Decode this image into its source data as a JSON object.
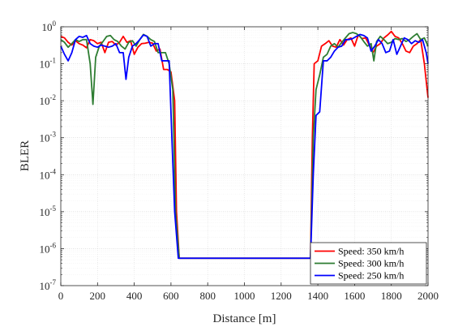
{
  "chart_data": {
    "type": "line",
    "xlabel": "Distance [m]",
    "ylabel": "BLER",
    "xlim": [
      0,
      2000
    ],
    "ylim_exp": [
      -7,
      0
    ],
    "yscale": "log",
    "grid": true,
    "legend_position": "bottom-right",
    "x_ticks": [
      "0",
      "200",
      "400",
      "600",
      "800",
      "1000",
      "1200",
      "1400",
      "1600",
      "1800",
      "2000"
    ],
    "y_tick_base": "10",
    "y_tick_exponents": [
      "-7",
      "-6",
      "-5",
      "-4",
      "-3",
      "-2",
      "-1",
      "0"
    ],
    "series": [
      {
        "name": "Speed: 350 km/h",
        "color": "#ff0000",
        "points": [
          [
            0,
            0.55
          ],
          [
            20,
            0.5
          ],
          [
            40,
            0.38
          ],
          [
            60,
            0.32
          ],
          [
            80,
            0.42
          ],
          [
            100,
            0.35
          ],
          [
            120,
            0.32
          ],
          [
            140,
            0.27
          ],
          [
            160,
            0.45
          ],
          [
            180,
            0.42
          ],
          [
            200,
            0.35
          ],
          [
            220,
            0.38
          ],
          [
            240,
            0.2
          ],
          [
            260,
            0.38
          ],
          [
            280,
            0.4
          ],
          [
            300,
            0.32
          ],
          [
            320,
            0.38
          ],
          [
            340,
            0.55
          ],
          [
            360,
            0.38
          ],
          [
            380,
            0.42
          ],
          [
            400,
            0.18
          ],
          [
            420,
            0.28
          ],
          [
            440,
            0.35
          ],
          [
            460,
            0.36
          ],
          [
            480,
            0.38
          ],
          [
            500,
            0.36
          ],
          [
            520,
            0.22
          ],
          [
            540,
            0.25
          ],
          [
            560,
            0.07
          ],
          [
            580,
            0.07
          ],
          [
            600,
            0.06
          ],
          [
            620,
            0.01
          ],
          [
            630,
            1e-05
          ],
          [
            645,
            5.5e-07
          ],
          [
            1360,
            5.5e-07
          ],
          [
            1370,
            0.001
          ],
          [
            1380,
            0.1
          ],
          [
            1400,
            0.12
          ],
          [
            1420,
            0.3
          ],
          [
            1440,
            0.35
          ],
          [
            1460,
            0.42
          ],
          [
            1480,
            0.3
          ],
          [
            1500,
            0.28
          ],
          [
            1520,
            0.45
          ],
          [
            1540,
            0.32
          ],
          [
            1560,
            0.45
          ],
          [
            1580,
            0.5
          ],
          [
            1600,
            0.3
          ],
          [
            1620,
            0.6
          ],
          [
            1640,
            0.48
          ],
          [
            1660,
            0.5
          ],
          [
            1680,
            0.32
          ],
          [
            1700,
            0.2
          ],
          [
            1720,
            0.3
          ],
          [
            1740,
            0.35
          ],
          [
            1760,
            0.5
          ],
          [
            1780,
            0.6
          ],
          [
            1800,
            0.75
          ],
          [
            1820,
            0.55
          ],
          [
            1840,
            0.5
          ],
          [
            1860,
            0.35
          ],
          [
            1880,
            0.22
          ],
          [
            1900,
            0.2
          ],
          [
            1920,
            0.3
          ],
          [
            1940,
            0.35
          ],
          [
            1960,
            0.45
          ],
          [
            1980,
            0.1
          ],
          [
            2000,
            0.012
          ]
        ]
      },
      {
        "name": "Speed: 300 km/h",
        "color": "#2e7d32",
        "points": [
          [
            0,
            0.45
          ],
          [
            20,
            0.38
          ],
          [
            40,
            0.28
          ],
          [
            60,
            0.35
          ],
          [
            80,
            0.45
          ],
          [
            100,
            0.4
          ],
          [
            120,
            0.45
          ],
          [
            140,
            0.45
          ],
          [
            160,
            0.1
          ],
          [
            175,
            0.008
          ],
          [
            190,
            0.15
          ],
          [
            210,
            0.3
          ],
          [
            230,
            0.4
          ],
          [
            250,
            0.55
          ],
          [
            270,
            0.58
          ],
          [
            290,
            0.45
          ],
          [
            310,
            0.4
          ],
          [
            330,
            0.3
          ],
          [
            350,
            0.25
          ],
          [
            370,
            0.38
          ],
          [
            390,
            0.42
          ],
          [
            410,
            0.3
          ],
          [
            430,
            0.45
          ],
          [
            450,
            0.62
          ],
          [
            470,
            0.55
          ],
          [
            490,
            0.45
          ],
          [
            510,
            0.4
          ],
          [
            530,
            0.2
          ],
          [
            550,
            0.2
          ],
          [
            570,
            0.2
          ],
          [
            590,
            0.1
          ],
          [
            610,
            0.02
          ],
          [
            625,
            1e-05
          ],
          [
            645,
            5.5e-07
          ],
          [
            1360,
            5.5e-07
          ],
          [
            1375,
            0.001
          ],
          [
            1390,
            0.02
          ],
          [
            1410,
            0.05
          ],
          [
            1430,
            0.15
          ],
          [
            1450,
            0.18
          ],
          [
            1470,
            0.3
          ],
          [
            1490,
            0.35
          ],
          [
            1510,
            0.28
          ],
          [
            1530,
            0.38
          ],
          [
            1550,
            0.5
          ],
          [
            1570,
            0.65
          ],
          [
            1590,
            0.7
          ],
          [
            1610,
            0.65
          ],
          [
            1630,
            0.55
          ],
          [
            1650,
            0.4
          ],
          [
            1670,
            0.3
          ],
          [
            1690,
            0.35
          ],
          [
            1705,
            0.12
          ],
          [
            1720,
            0.4
          ],
          [
            1740,
            0.55
          ],
          [
            1760,
            0.45
          ],
          [
            1780,
            0.35
          ],
          [
            1800,
            0.38
          ],
          [
            1820,
            0.48
          ],
          [
            1840,
            0.45
          ],
          [
            1860,
            0.48
          ],
          [
            1880,
            0.4
          ],
          [
            1900,
            0.45
          ],
          [
            1920,
            0.55
          ],
          [
            1940,
            0.65
          ],
          [
            1960,
            0.45
          ],
          [
            1980,
            0.5
          ],
          [
            2000,
            0.3
          ]
        ]
      },
      {
        "name": "Speed: 250 km/h",
        "color": "#0000ff",
        "points": [
          [
            0,
            0.3
          ],
          [
            20,
            0.18
          ],
          [
            40,
            0.12
          ],
          [
            60,
            0.2
          ],
          [
            80,
            0.45
          ],
          [
            100,
            0.55
          ],
          [
            120,
            0.52
          ],
          [
            140,
            0.58
          ],
          [
            160,
            0.35
          ],
          [
            180,
            0.3
          ],
          [
            200,
            0.28
          ],
          [
            220,
            0.32
          ],
          [
            240,
            0.3
          ],
          [
            260,
            0.28
          ],
          [
            280,
            0.3
          ],
          [
            300,
            0.35
          ],
          [
            320,
            0.2
          ],
          [
            340,
            0.2
          ],
          [
            355,
            0.038
          ],
          [
            370,
            0.15
          ],
          [
            390,
            0.3
          ],
          [
            410,
            0.35
          ],
          [
            430,
            0.45
          ],
          [
            450,
            0.6
          ],
          [
            470,
            0.55
          ],
          [
            490,
            0.3
          ],
          [
            510,
            0.35
          ],
          [
            530,
            0.35
          ],
          [
            550,
            0.12
          ],
          [
            570,
            0.12
          ],
          [
            590,
            0.12
          ],
          [
            605,
            0.001
          ],
          [
            620,
            1e-05
          ],
          [
            640,
            5.5e-07
          ],
          [
            1360,
            5.5e-07
          ],
          [
            1375,
            0.0001
          ],
          [
            1390,
            0.004
          ],
          [
            1410,
            0.005
          ],
          [
            1430,
            0.12
          ],
          [
            1450,
            0.12
          ],
          [
            1470,
            0.15
          ],
          [
            1490,
            0.22
          ],
          [
            1510,
            0.28
          ],
          [
            1530,
            0.3
          ],
          [
            1550,
            0.45
          ],
          [
            1570,
            0.45
          ],
          [
            1590,
            0.48
          ],
          [
            1610,
            0.55
          ],
          [
            1630,
            0.62
          ],
          [
            1650,
            0.58
          ],
          [
            1670,
            0.5
          ],
          [
            1690,
            0.22
          ],
          [
            1710,
            0.3
          ],
          [
            1730,
            0.45
          ],
          [
            1750,
            0.35
          ],
          [
            1770,
            0.2
          ],
          [
            1790,
            0.22
          ],
          [
            1810,
            0.45
          ],
          [
            1830,
            0.18
          ],
          [
            1850,
            0.3
          ],
          [
            1870,
            0.5
          ],
          [
            1890,
            0.45
          ],
          [
            1910,
            0.35
          ],
          [
            1930,
            0.42
          ],
          [
            1950,
            0.38
          ],
          [
            1970,
            0.45
          ],
          [
            1990,
            0.2
          ],
          [
            2000,
            0.1
          ]
        ]
      }
    ]
  }
}
